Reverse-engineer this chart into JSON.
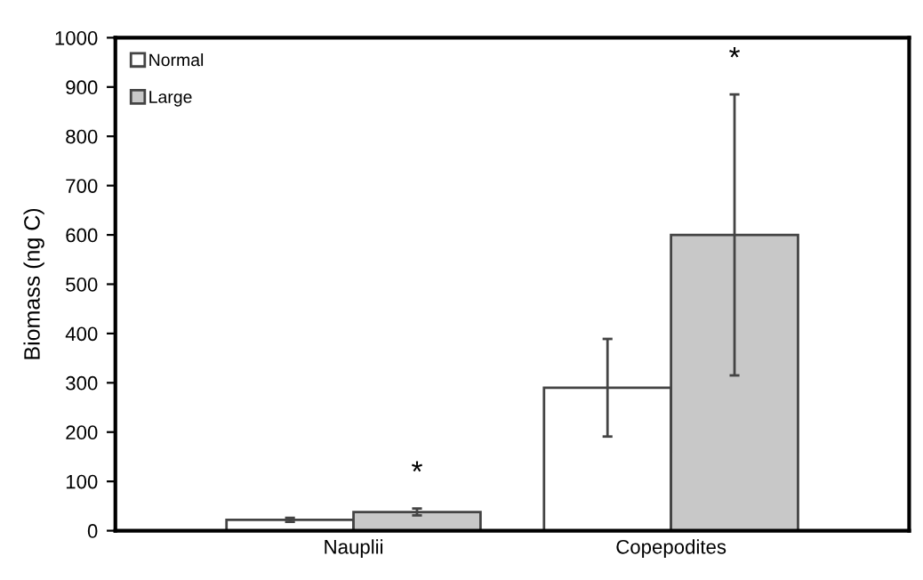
{
  "chart_data": {
    "type": "bar",
    "ylabel": "Biomass (ng C)",
    "categories": [
      "Nauplii",
      "Copepodites"
    ],
    "series": [
      {
        "name": "Normal",
        "color": "#ffffff",
        "values": [
          22,
          290
        ],
        "errors": [
          4,
          99
        ]
      },
      {
        "name": "Large",
        "color": "#c8c8c8",
        "values": [
          38,
          600
        ],
        "errors": [
          7,
          285
        ]
      }
    ],
    "ylim": [
      0,
      1000
    ],
    "yticks": [
      0,
      100,
      200,
      300,
      400,
      500,
      600,
      700,
      800,
      900,
      1000
    ],
    "grid": false,
    "legend": "top left",
    "annotations": [
      "*",
      "*"
    ]
  }
}
